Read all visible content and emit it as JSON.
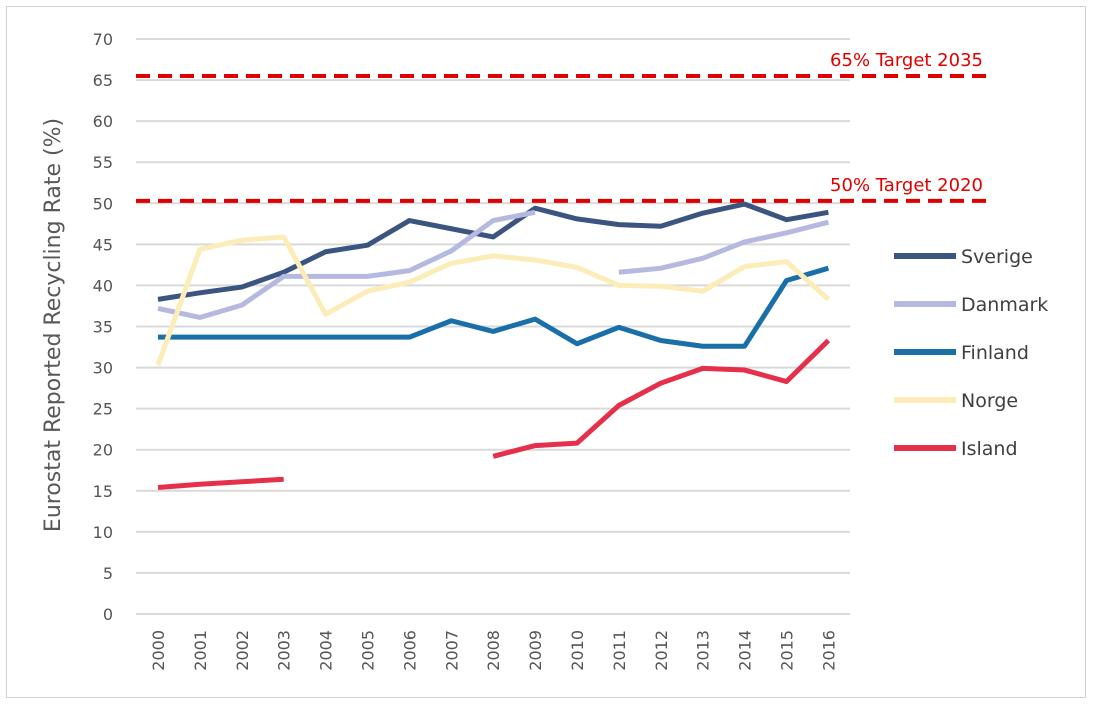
{
  "chart_data": {
    "type": "line",
    "title": "",
    "xlabel": "",
    "ylabel": "Eurostat Reported Recycling Rate (%)",
    "ylim": [
      0,
      70
    ],
    "ytick_step": 5,
    "grid": true,
    "legend_position": "right",
    "categories": [
      "2000",
      "2001",
      "2002",
      "2003",
      "2004",
      "2005",
      "2006",
      "2007",
      "2008",
      "2009",
      "2010",
      "2011",
      "2012",
      "2013",
      "2014",
      "2015",
      "2016"
    ],
    "series": [
      {
        "name": "Sverige",
        "color": "#3b5580",
        "values": [
          38.3,
          39.1,
          39.8,
          41.6,
          44.1,
          44.9,
          47.9,
          46.9,
          45.9,
          49.4,
          48.1,
          47.4,
          47.2,
          48.8,
          49.9,
          48.0,
          48.9
        ]
      },
      {
        "name": "Danmark",
        "color": "#b5b9e0",
        "values": [
          37.2,
          36.1,
          37.6,
          41.1,
          41.1,
          41.1,
          41.8,
          44.2,
          47.9,
          48.9,
          null,
          41.6,
          42.1,
          43.3,
          45.3,
          46.4,
          47.7
        ]
      },
      {
        "name": "Finland",
        "color": "#1a6fa8",
        "values": [
          33.7,
          33.7,
          33.7,
          33.7,
          33.7,
          33.7,
          33.7,
          35.7,
          34.4,
          35.9,
          32.9,
          34.9,
          33.3,
          32.6,
          32.6,
          40.6,
          42.1
        ]
      },
      {
        "name": "Norge",
        "color": "#fbecb8",
        "values": [
          30.3,
          44.4,
          45.5,
          45.9,
          36.5,
          39.3,
          40.4,
          42.7,
          43.6,
          43.1,
          42.2,
          40.0,
          39.9,
          39.3,
          42.3,
          42.9,
          38.3
        ]
      },
      {
        "name": "Island",
        "color": "#e4304a",
        "values": [
          15.4,
          15.8,
          16.1,
          16.4,
          null,
          null,
          null,
          null,
          19.2,
          20.5,
          20.8,
          25.4,
          28.1,
          29.9,
          29.7,
          28.3,
          33.3
        ]
      }
    ],
    "targets": [
      {
        "label": "65% Target 2035",
        "value": 65.5,
        "color": "#e00000"
      },
      {
        "label": "50% Target 2020",
        "value": 50.3,
        "color": "#e00000"
      }
    ]
  }
}
